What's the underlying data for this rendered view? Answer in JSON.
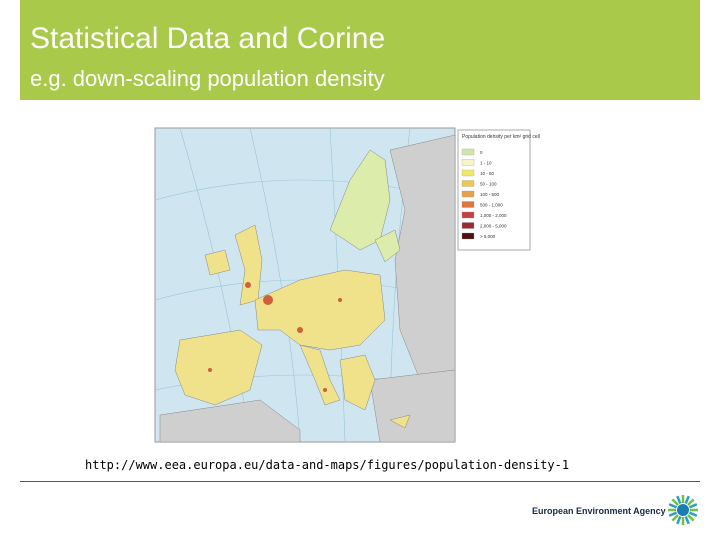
{
  "header": {
    "title": "Statistical Data and Corine",
    "subtitle": "e.g. down-scaling population density"
  },
  "map": {
    "legend": {
      "title": "Population density per km² grid cell",
      "items": [
        "0",
        "1 - 10",
        "10 - 50",
        "50 - 100",
        "100 - 500",
        "500 - 1,000",
        "1,000 - 2,000",
        "2,000 - 5,000",
        "> 5,000"
      ]
    }
  },
  "source": "http://www.eea.europa.eu/data-and-maps/figures/population-density-1",
  "footer": {
    "organization": "European Environment Agency"
  }
}
